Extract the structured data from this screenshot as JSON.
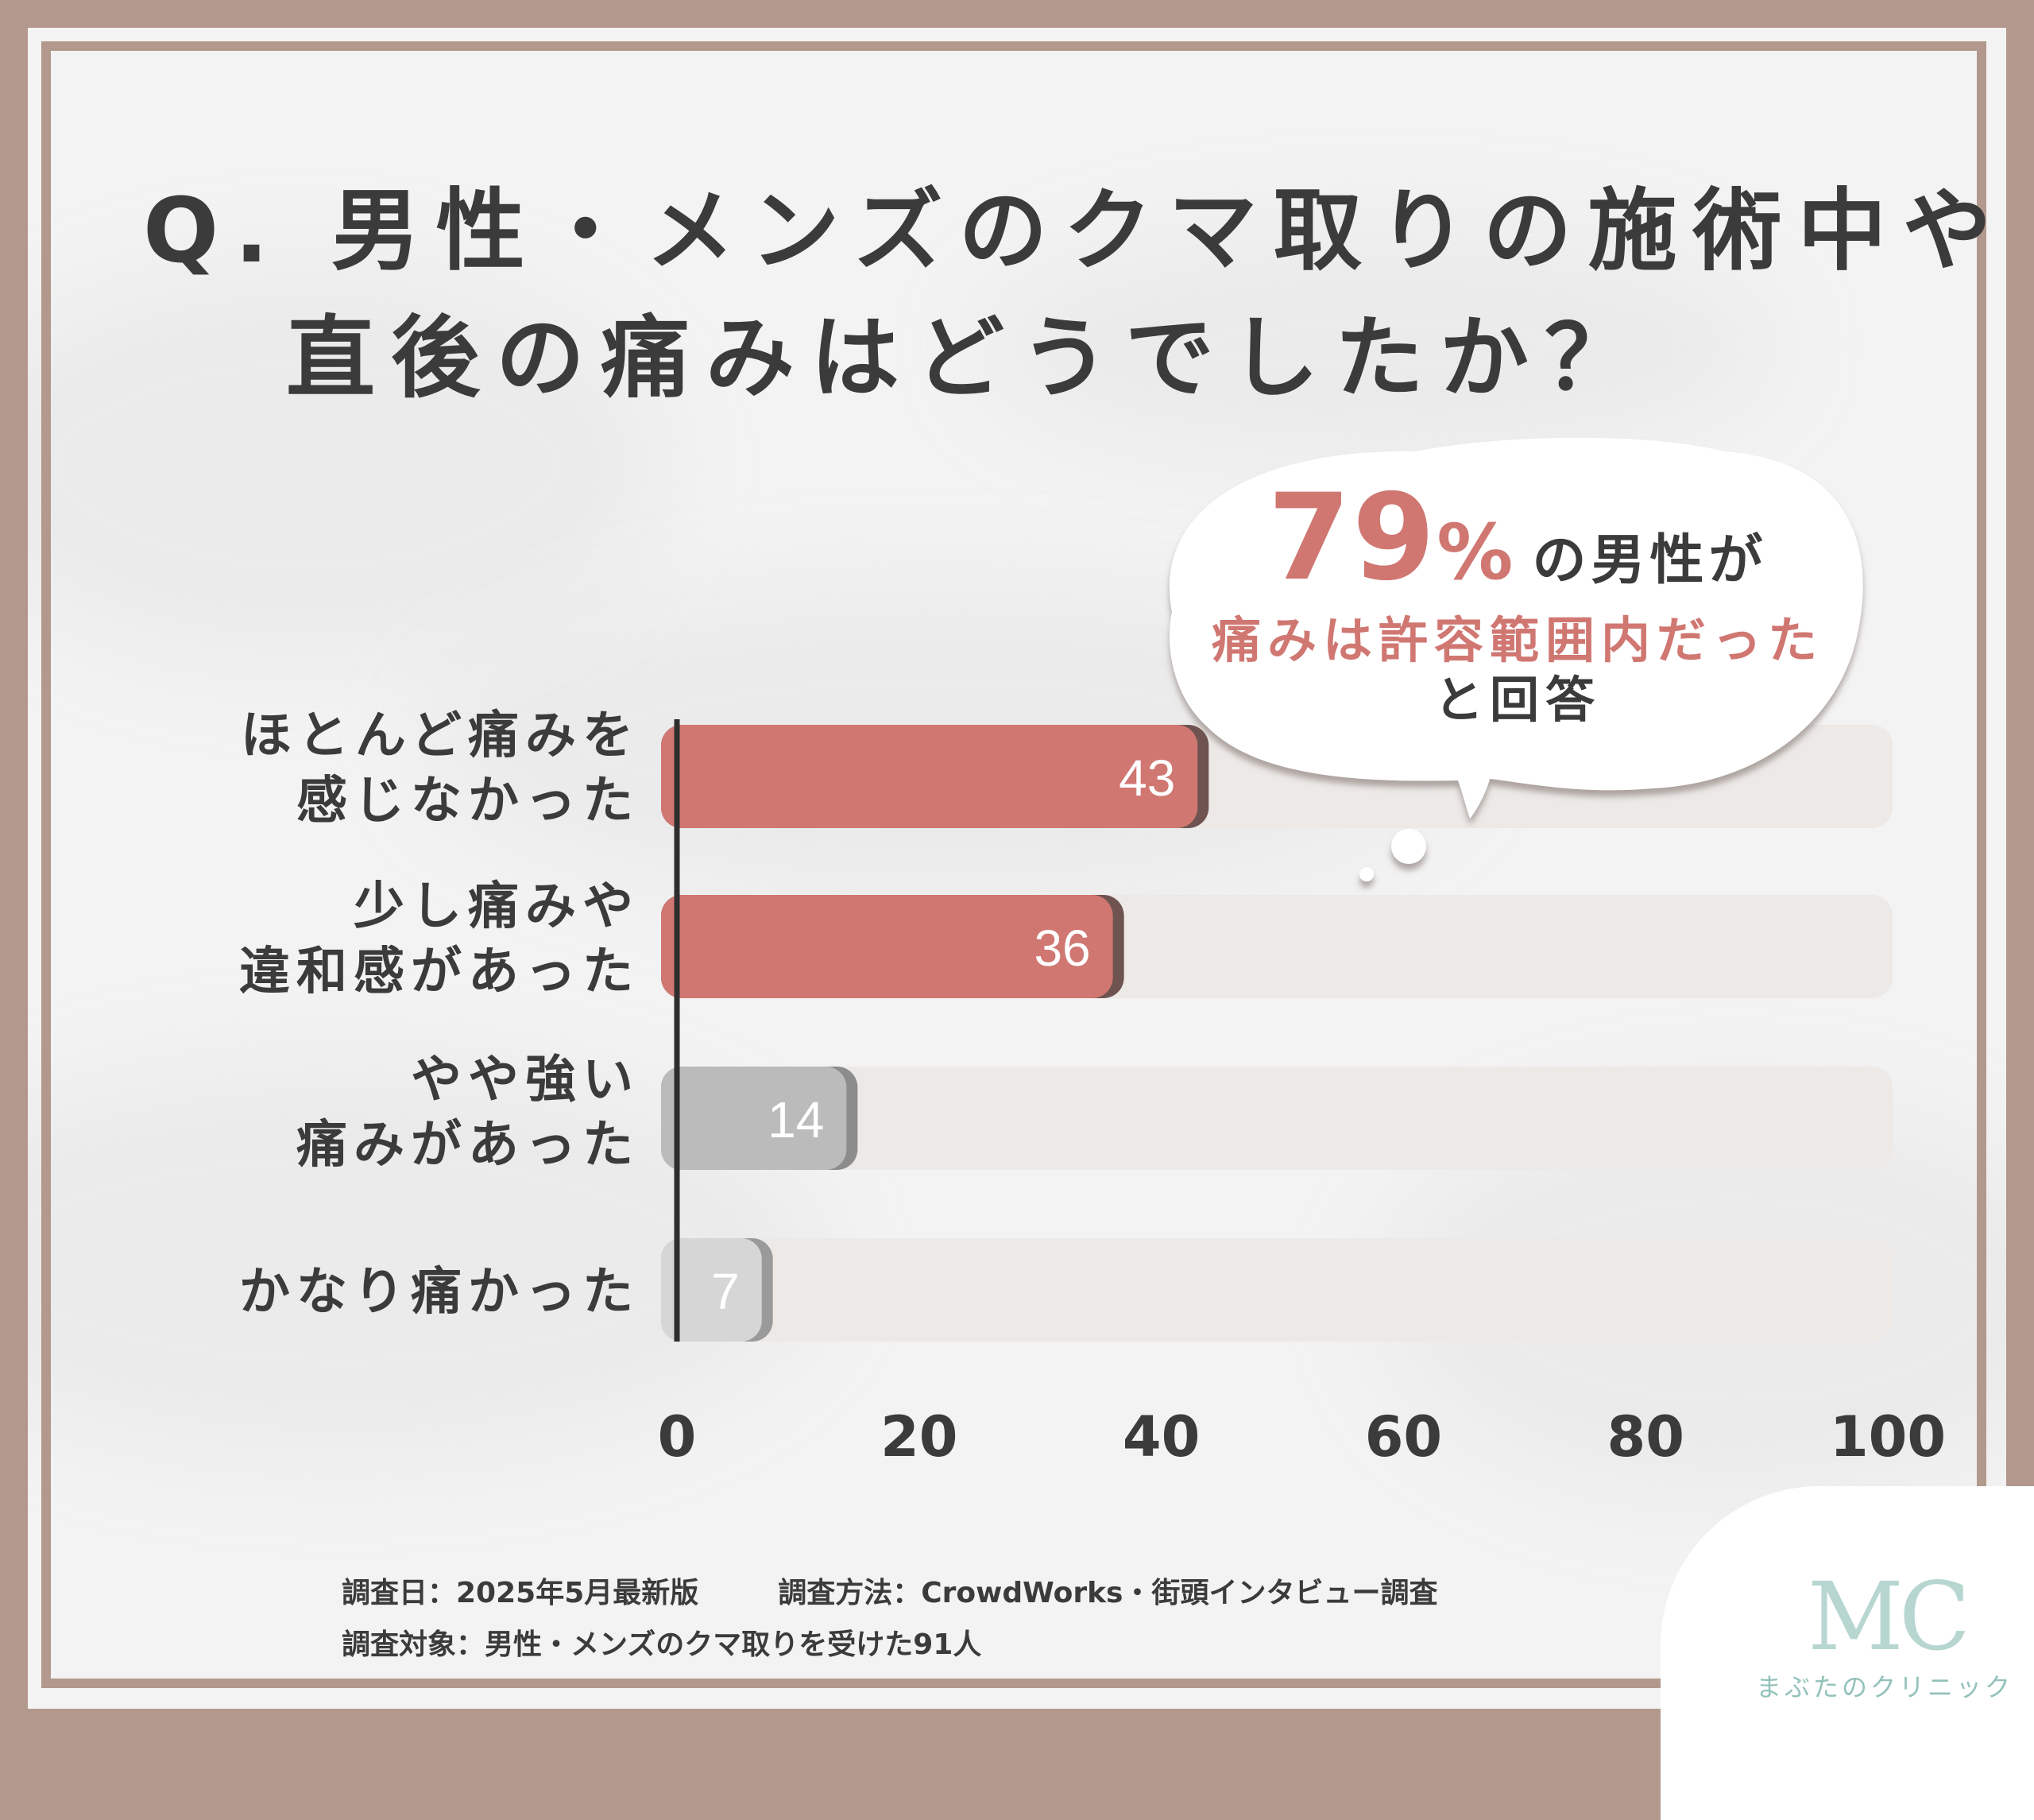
{
  "title": {
    "line1": "Q. 男性・メンズのクマ取りの施術中や",
    "line2": "直後の痛みはどうでしたか？"
  },
  "callout": {
    "percent": "79",
    "percent_sign": "%",
    "line1_rest": "の男性が",
    "line2": "痛みは許容範囲内だった",
    "line3": "と回答"
  },
  "chart_data": {
    "type": "bar",
    "orientation": "horizontal",
    "categories": [
      [
        "ほとんど痛みを",
        "感じなかった"
      ],
      [
        "少し痛みや",
        "違和感があった"
      ],
      [
        "やや強い",
        "痛みがあった"
      ],
      [
        "かなり痛かった"
      ]
    ],
    "values": [
      43,
      36,
      14,
      7
    ],
    "value_labels": [
      "43",
      "36",
      "14",
      "7"
    ],
    "xlim": [
      0,
      100
    ],
    "xticks": [
      "0",
      "20",
      "40",
      "60",
      "80",
      "100"
    ],
    "xtick_values": [
      0,
      20,
      40,
      60,
      80,
      100
    ],
    "bar_colors": [
      "#d07772",
      "#d07772",
      "#bbbbbb",
      "#d6d6d6"
    ],
    "bar_shadow_colors": [
      "#6e5350",
      "#6e5350",
      "#8c8c8c",
      "#9a9a9a"
    ],
    "track_color": "#ece9e7",
    "axis_color": "#2e2e2e"
  },
  "footer": {
    "date": "調査日：2025年5月最新版",
    "method": "調査方法：CrowdWorks・街頭インタビュー調査",
    "target": "調査対象：男性・メンズのクマ取りを受けた91人"
  },
  "logo": {
    "mark": "MC",
    "name": "まぶたのクリニック"
  }
}
